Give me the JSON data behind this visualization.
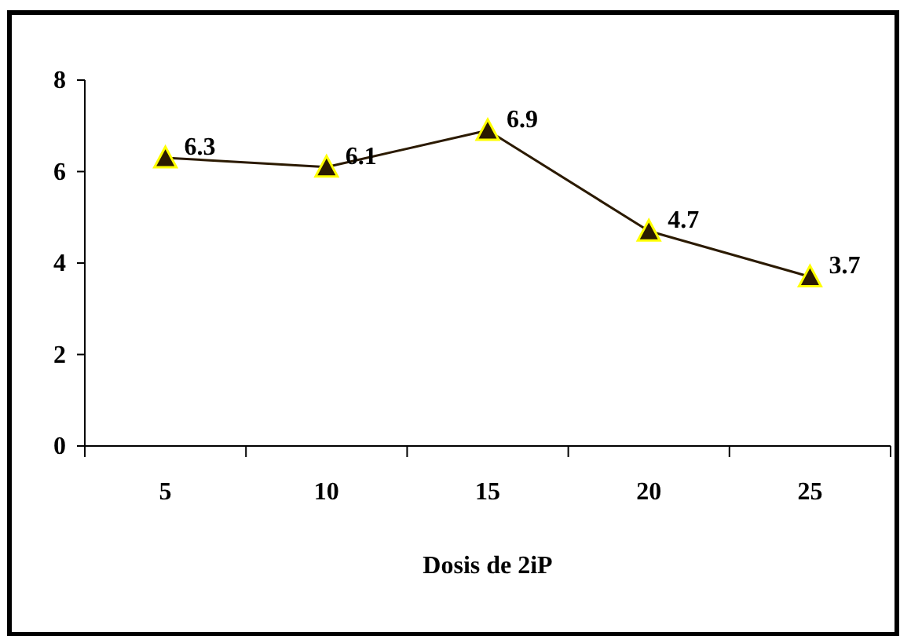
{
  "chart_data": {
    "type": "line",
    "xlabel": "Dosis de 2iP",
    "categories": [
      "5",
      "10",
      "15",
      "20",
      "25"
    ],
    "series": [
      {
        "color": "#2b1a00",
        "values": [
          6.3,
          6.1,
          6.9,
          4.7,
          3.7
        ]
      }
    ],
    "ylim": [
      0,
      8
    ],
    "yticks": [
      0,
      2,
      4,
      6,
      8
    ],
    "marker": "triangle",
    "data_labels": true,
    "grid": false
  }
}
